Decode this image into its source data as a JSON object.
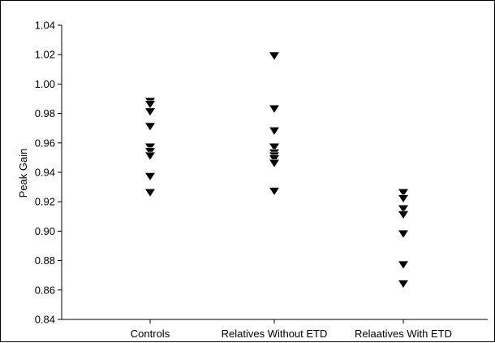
{
  "chart_data": {
    "type": "scatter",
    "title": "",
    "xlabel": "",
    "ylabel": "Peak Gain",
    "ylim": [
      0.84,
      1.04
    ],
    "yticks": [
      "0.84",
      "0.86",
      "0.88",
      "0.90",
      "0.92",
      "0.94",
      "0.96",
      "0.98",
      "1.00",
      "1.02",
      "1.04"
    ],
    "categories": [
      "Controls",
      "Relatives Without ETD",
      "Relaatives With ETD"
    ],
    "marker": "filled-down-triangle",
    "marker_color": "#000000",
    "grid": false,
    "legend": "none",
    "series": [
      {
        "category": "Controls",
        "values": [
          0.988,
          0.986,
          0.981,
          0.971,
          0.957,
          0.954,
          0.951,
          0.937,
          0.926
        ]
      },
      {
        "category": "Relatives Without ETD",
        "values": [
          1.019,
          0.983,
          0.968,
          0.957,
          0.953,
          0.951,
          0.949,
          0.946,
          0.927
        ]
      },
      {
        "category": "Relaatives With ETD",
        "values": [
          0.926,
          0.922,
          0.915,
          0.911,
          0.898,
          0.877,
          0.864
        ]
      }
    ]
  }
}
